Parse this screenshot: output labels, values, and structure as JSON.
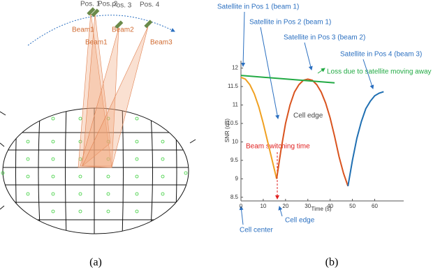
{
  "panel_a": {
    "positions": [
      "Pos. 1",
      "Pos. 2",
      "Pos. 3",
      "Pos. 4"
    ],
    "beams": [
      "Beam1",
      "Beam2",
      "Beam1",
      "Beam3"
    ]
  },
  "chart_data": {
    "type": "line",
    "xlabel": "Time (s)",
    "ylabel": "SNR (dB)",
    "xlim": [
      0,
      73
    ],
    "xticks": [
      0,
      10,
      20,
      30,
      40,
      50,
      60
    ],
    "ylim": [
      8.4,
      12.2
    ],
    "yticks": [
      8.5,
      9,
      9.5,
      10,
      10.5,
      11,
      11.5,
      12
    ],
    "series": [
      {
        "color": "#f0a020",
        "x": [
          0,
          2,
          4,
          6,
          8,
          10,
          12,
          14,
          16
        ],
        "values": [
          11.75,
          11.7,
          11.55,
          11.3,
          10.95,
          10.5,
          10,
          9.5,
          9.0
        ]
      },
      {
        "color": "#d9531e",
        "x": [
          16,
          18,
          20,
          22,
          24,
          26,
          28,
          30,
          32,
          34,
          36,
          38,
          40,
          42,
          44,
          46,
          48
        ],
        "values": [
          9.0,
          9.8,
          10.5,
          11.0,
          11.35,
          11.55,
          11.67,
          11.7,
          11.67,
          11.55,
          11.35,
          11.05,
          10.65,
          10.15,
          9.6,
          9.15,
          8.8
        ]
      },
      {
        "color": "#1f6fb2",
        "x": [
          48,
          50,
          52,
          54,
          56,
          58,
          60,
          62,
          64
        ],
        "values": [
          8.8,
          9.5,
          10.1,
          10.55,
          10.9,
          11.1,
          11.25,
          11.32,
          11.36
        ]
      },
      {
        "color": "#22aa44",
        "x": [
          0,
          42
        ],
        "values": [
          11.8,
          11.6
        ]
      }
    ],
    "annotations": [
      "Satellite in Pos 1 (beam 1)",
      "Satellite in Pos 2 (beam 1)",
      "Satellite in Pos 3 (beam 2)",
      "Satellite in Pos 4 (beam 3)",
      "Loss due to satellite moving away",
      "Cell edge",
      "Beam switching time",
      "Cell center",
      "Cell edge"
    ]
  },
  "captions": [
    "(a)",
    "(b)"
  ]
}
